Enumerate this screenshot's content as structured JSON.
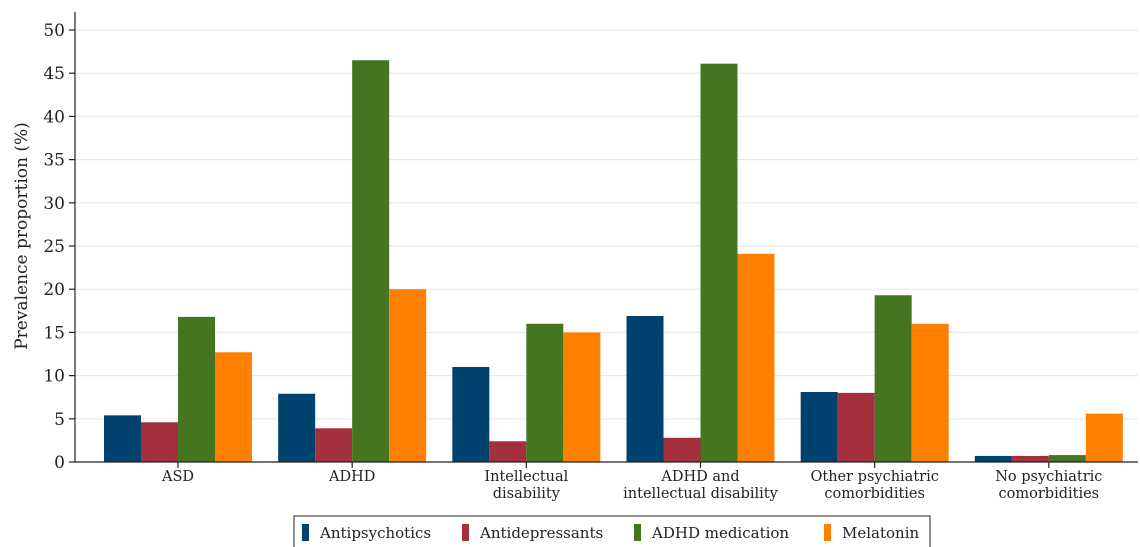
{
  "chart_data": {
    "type": "bar",
    "ylabel": "Prevalence proportion (%)",
    "ylim": [
      0,
      50
    ],
    "yticks": [
      0,
      5,
      10,
      15,
      20,
      25,
      30,
      35,
      40,
      45,
      50
    ],
    "grid": true,
    "legend_position": "bottom",
    "categories": [
      [
        "ASD"
      ],
      [
        "ADHD"
      ],
      [
        "Intellectual",
        "disability"
      ],
      [
        "ADHD and",
        "intellectual disability"
      ],
      [
        "Other psychiatric",
        "comorbidities"
      ],
      [
        "No psychiatric",
        "comorbidities"
      ]
    ],
    "series": [
      {
        "name": "Antipsychotics",
        "color": "#00426e",
        "values": [
          5.4,
          7.9,
          11.0,
          16.9,
          8.1,
          0.7
        ]
      },
      {
        "name": "Antidepressants",
        "color": "#a4303e",
        "values": [
          4.6,
          3.9,
          2.4,
          2.8,
          8.0,
          0.7
        ]
      },
      {
        "name": "ADHD medication",
        "color": "#447521",
        "values": [
          16.8,
          46.5,
          16.0,
          46.1,
          19.3,
          0.8
        ]
      },
      {
        "name": "Melatonin",
        "color": "#ff7f00",
        "values": [
          12.7,
          20.0,
          15.0,
          24.1,
          16.0,
          5.6
        ]
      }
    ]
  }
}
